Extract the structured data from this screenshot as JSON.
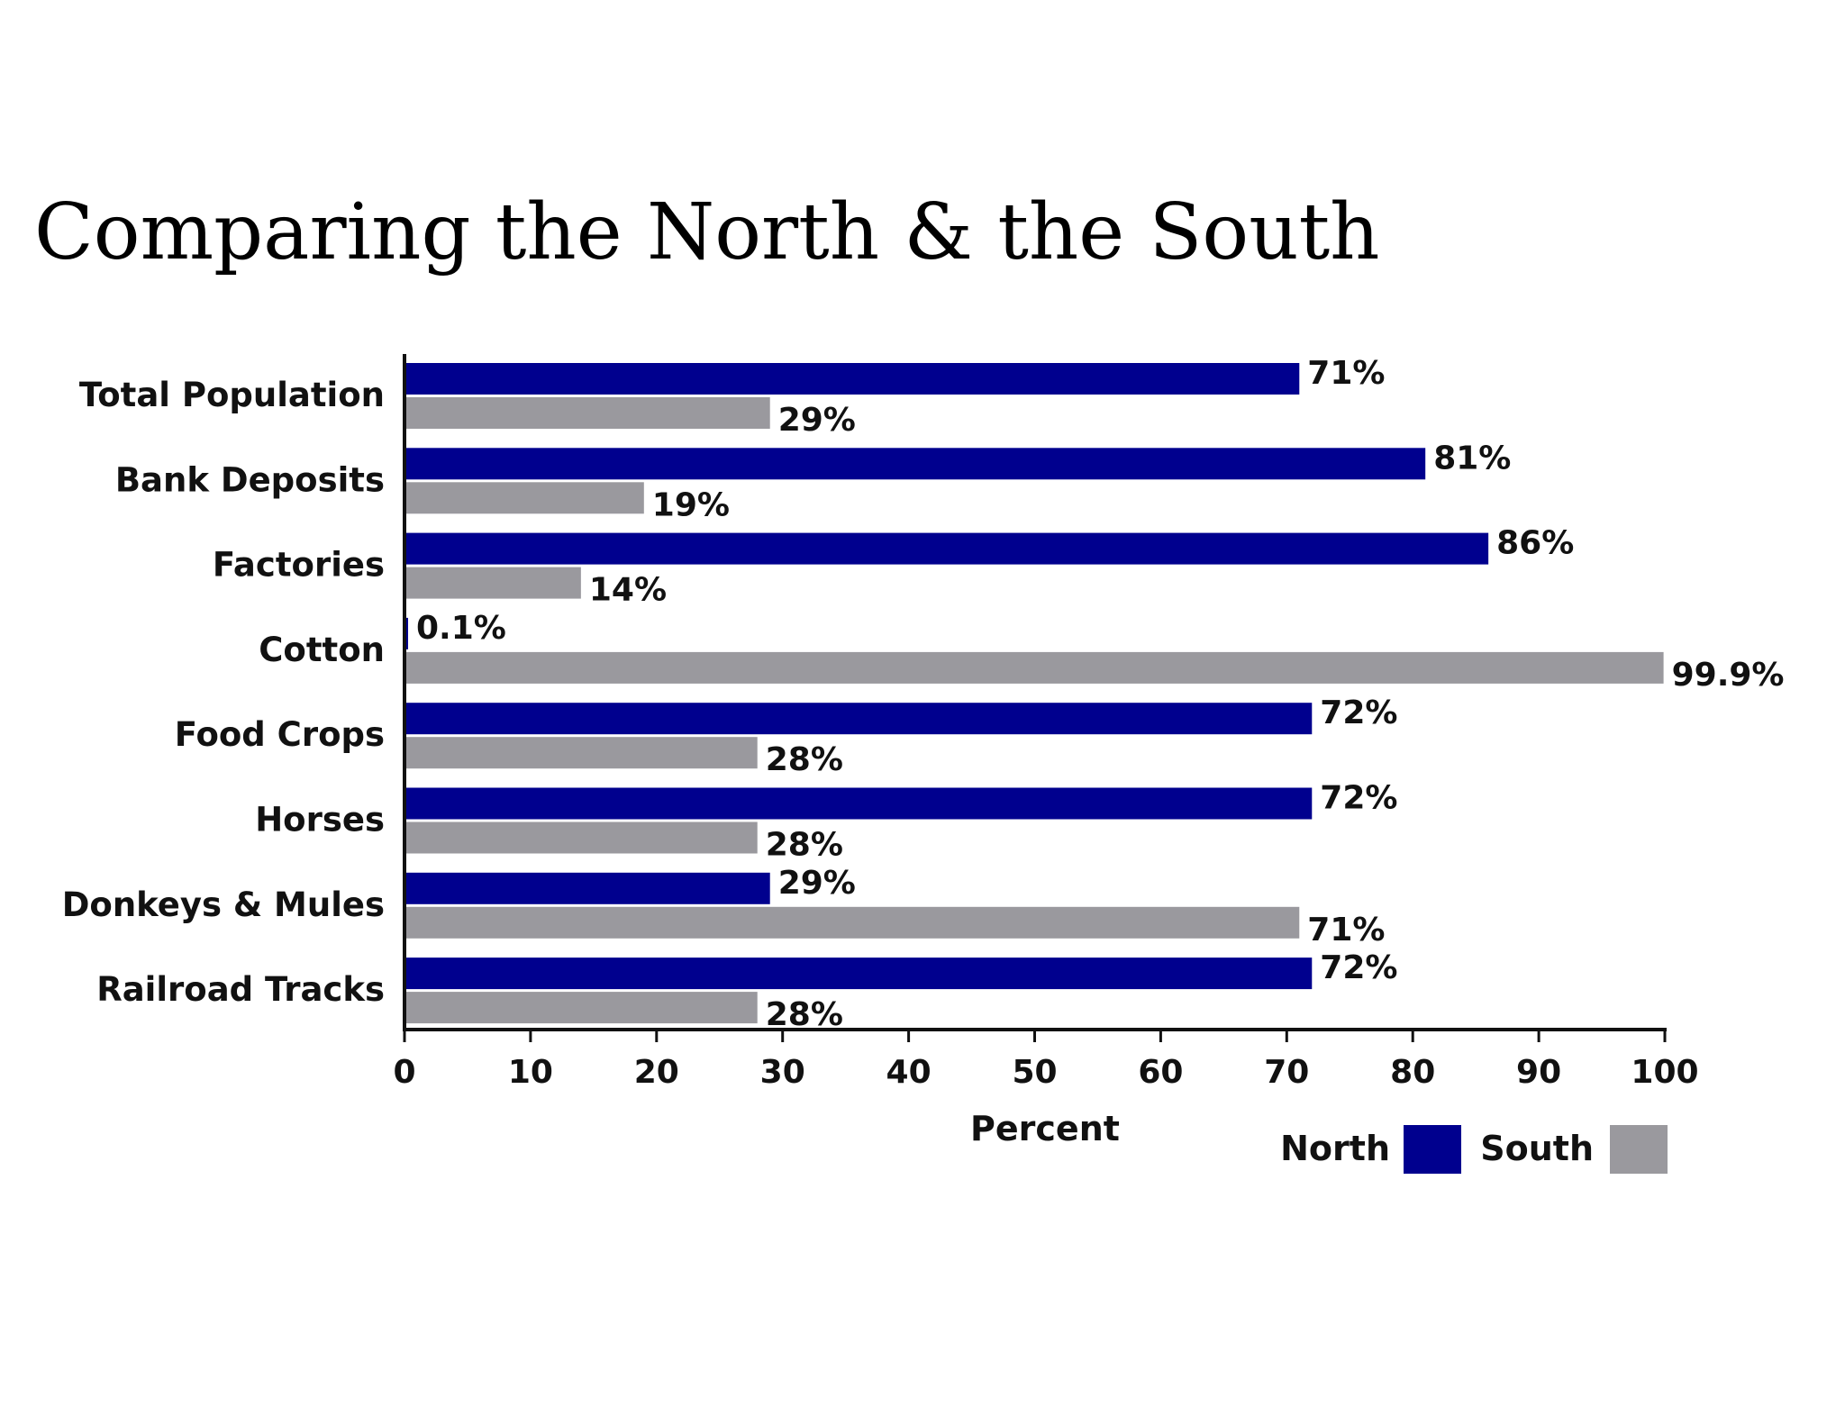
{
  "page": {
    "title": "Comparing the North & the South"
  },
  "chart_data": {
    "type": "bar",
    "orientation": "horizontal",
    "title": "Comparing the North & the South",
    "xlabel": "Percent",
    "ylabel": "",
    "xlim": [
      0,
      100
    ],
    "xticks": [
      "0",
      "10",
      "20",
      "30",
      "40",
      "50",
      "60",
      "70",
      "80",
      "90",
      "100"
    ],
    "grid": false,
    "legend_position": "bottom-right",
    "categories": [
      "Total Population",
      "Bank Deposits",
      "Factories",
      "Cotton",
      "Food Crops",
      "Horses",
      "Donkeys & Mules",
      "Railroad Tracks"
    ],
    "series": [
      {
        "name": "North",
        "color": "#00008e",
        "values": [
          71,
          81,
          86,
          0.1,
          72,
          72,
          29,
          72
        ],
        "labels": [
          "71%",
          "81%",
          "86%",
          "0.1%",
          "72%",
          "72%",
          "29%",
          "72%"
        ]
      },
      {
        "name": "South",
        "color": "#9a999e",
        "values": [
          29,
          19,
          14,
          99.9,
          28,
          28,
          71,
          28
        ],
        "labels": [
          "29%",
          "19%",
          "14%",
          "99.9%",
          "28%",
          "28%",
          "71%",
          "28%"
        ]
      }
    ]
  }
}
